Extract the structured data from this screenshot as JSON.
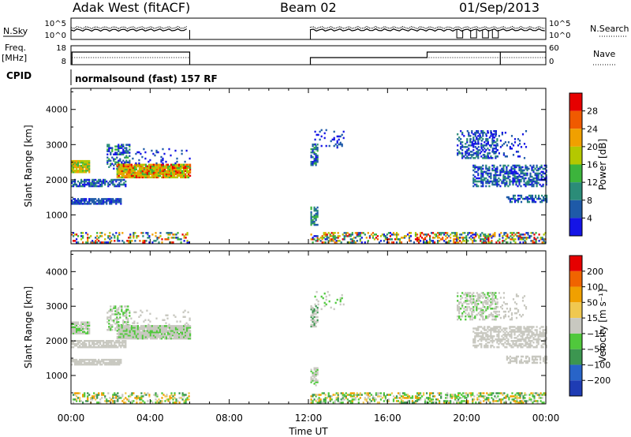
{
  "header": {
    "station": "Adak West (fitACF)",
    "beam": "Beam 02",
    "date": "01/Sep/2013"
  },
  "small_panels": {
    "sky_label": "N.Sky",
    "search_label": "N.Search",
    "freq_label": "Freq.",
    "freq_unit": "[MHz]",
    "nave_label": "Nave",
    "cpid_label": "CPID",
    "cpid_text": "normalsound (fast) 157 RF",
    "noise_ticks": [
      "10^5",
      "10^0"
    ],
    "noise_right_ticks": [
      "10^5",
      "10^0"
    ],
    "freq_ticks": [
      "18",
      "8"
    ],
    "nave_ticks": [
      "60",
      "0"
    ]
  },
  "chart_data": [
    {
      "type": "heatmap",
      "title": "",
      "xlabel": "Time UT",
      "ylabel": "Slant Range [km]",
      "x_ticks": [
        "00:00",
        "04:00",
        "08:00",
        "12:00",
        "16:00",
        "20:00",
        "00:00"
      ],
      "xlim_hours": [
        0,
        24
      ],
      "y_ticks": [
        1000,
        2000,
        3000,
        4000
      ],
      "ylim": [
        180,
        4600
      ],
      "colorbar": {
        "label": "Power [dB]",
        "ticks": [
          "4",
          "8",
          "12",
          "16",
          "20",
          "24",
          "28"
        ],
        "colors": [
          "#1414e6",
          "#1e5aa8",
          "#2b8c78",
          "#3cb43c",
          "#b4c800",
          "#f0a000",
          "#f05a00",
          "#e60000"
        ]
      },
      "data_gap_hours": [
        6.0,
        12.1
      ]
    },
    {
      "type": "heatmap",
      "title": "",
      "xlabel": "Time UT",
      "ylabel": "Slant Range [km]",
      "x_ticks": [
        "00:00",
        "04:00",
        "08:00",
        "12:00",
        "16:00",
        "20:00",
        "00:00"
      ],
      "xlim_hours": [
        0,
        24
      ],
      "y_ticks": [
        1000,
        2000,
        3000,
        4000
      ],
      "ylim": [
        180,
        4600
      ],
      "colorbar": {
        "label": "Velocity [m s⁻¹]",
        "ticks": [
          "200",
          "100",
          "50",
          "15",
          "−15",
          "−50",
          "−100",
          "−200"
        ],
        "colors": [
          "#1e3cb4",
          "#2864c8",
          "#3c9650",
          "#50c83c",
          "#c8c8c0",
          "#f0c850",
          "#f0a000",
          "#f06400",
          "#e60000"
        ]
      },
      "data_gap_hours": [
        6.0,
        12.1
      ]
    }
  ],
  "colors": {
    "axis": "#000000",
    "velocity_gray": "#c8c8c0"
  }
}
